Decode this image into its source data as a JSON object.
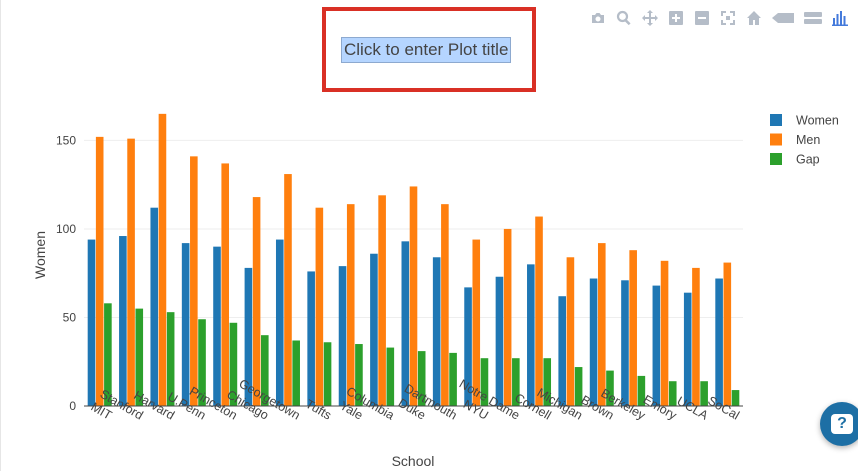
{
  "chart_data": {
    "type": "bar",
    "title": "Click to enter Plot title",
    "xlabel": "School",
    "ylabel": "Women",
    "ylim": [
      0,
      170
    ],
    "yticks": [
      0,
      50,
      100,
      150
    ],
    "grid": true,
    "legend_position": "top-right",
    "categories": [
      "MIT",
      "Stanford",
      "Harvard",
      "U.Penn",
      "Princeton",
      "Chicago",
      "Georgetown",
      "Tufts",
      "Yale",
      "Columbia",
      "Duke",
      "Dartmouth",
      "NYU",
      "Notre Dame",
      "Cornell",
      "Michigan",
      "Brown",
      "Berkeley",
      "Emory",
      "UCLA",
      "SoCal"
    ],
    "series": [
      {
        "name": "Women",
        "color": "#1f77b4",
        "values": [
          94,
          96,
          112,
          92,
          90,
          78,
          94,
          76,
          79,
          86,
          93,
          84,
          67,
          73,
          80,
          62,
          72,
          71,
          68,
          64,
          72
        ]
      },
      {
        "name": "Men",
        "color": "#ff7f0e",
        "values": [
          152,
          151,
          165,
          141,
          137,
          118,
          131,
          112,
          114,
          119,
          124,
          114,
          94,
          100,
          107,
          84,
          92,
          88,
          82,
          78,
          81
        ]
      },
      {
        "name": "Gap",
        "color": "#2ca02c",
        "values": [
          58,
          55,
          53,
          49,
          47,
          40,
          37,
          36,
          35,
          33,
          31,
          30,
          27,
          27,
          27,
          22,
          20,
          17,
          14,
          14,
          9
        ]
      }
    ]
  },
  "help_label": "?"
}
